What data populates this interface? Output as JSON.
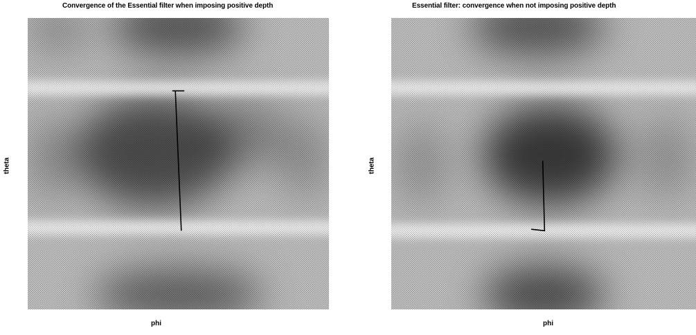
{
  "chart_data": [
    {
      "type": "heatmap",
      "title": "Convergence of the Essential filter when imposing positive depth",
      "xlabel": "phi",
      "ylabel": "theta",
      "trajectory": [
        {
          "phi": 0.48,
          "theta": 0.25
        },
        {
          "phi": 0.52,
          "theta": 0.25
        },
        {
          "phi": 0.49,
          "theta": 0.25
        },
        {
          "phi": 0.51,
          "theta": 0.73
        }
      ]
    },
    {
      "type": "heatmap",
      "title": "Essential filter: convergence when not imposing positive depth",
      "xlabel": "phi",
      "ylabel": "theta",
      "trajectory": [
        {
          "phi": 0.497,
          "theta": 0.49
        },
        {
          "phi": 0.503,
          "theta": 0.73
        },
        {
          "phi": 0.459,
          "theta": 0.725
        }
      ]
    }
  ]
}
